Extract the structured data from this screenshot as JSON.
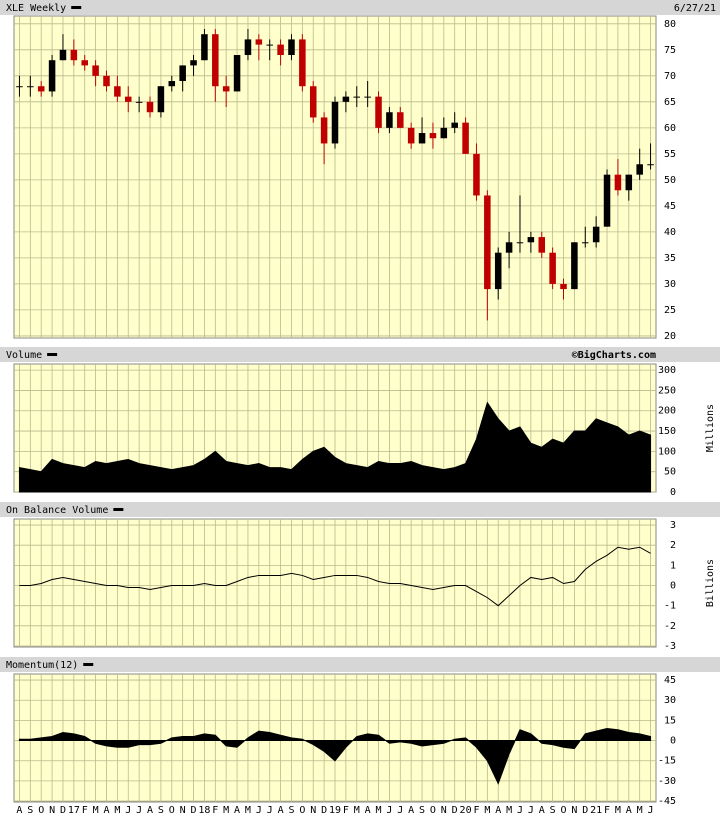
{
  "chart_data": [
    {
      "type": "candlestick",
      "title": "XLE Weekly",
      "date": "6/27/21",
      "categories": [
        "A",
        "S",
        "O",
        "N",
        "D",
        "17",
        "F",
        "M",
        "A",
        "M",
        "J",
        "J",
        "A",
        "S",
        "O",
        "N",
        "D",
        "18",
        "F",
        "M",
        "A",
        "M",
        "J",
        "J",
        "A",
        "S",
        "O",
        "N",
        "D",
        "19",
        "F",
        "M",
        "A",
        "M",
        "J",
        "J",
        "A",
        "S",
        "O",
        "N",
        "D",
        "20",
        "F",
        "M",
        "A",
        "M",
        "J",
        "J",
        "A",
        "S",
        "O",
        "N",
        "D",
        "21",
        "F",
        "M",
        "A",
        "M",
        "J"
      ],
      "open": [
        68,
        68,
        68,
        67,
        73,
        75,
        73,
        72,
        70,
        68,
        66,
        65,
        65,
        63,
        68,
        69,
        72,
        73,
        78,
        68,
        67,
        74,
        77,
        76,
        76,
        74,
        77,
        68,
        62,
        57,
        65,
        66,
        66,
        66,
        60,
        63,
        60,
        57,
        59,
        58,
        60,
        61,
        55,
        47,
        29,
        36,
        38,
        38,
        39,
        36,
        30,
        29,
        38,
        38,
        41,
        51,
        48,
        51,
        53
      ],
      "high": [
        70,
        70,
        69,
        74,
        78,
        77,
        74,
        73,
        71,
        70,
        68,
        66,
        66,
        68,
        70,
        72,
        74,
        79,
        79,
        70,
        74,
        79,
        78,
        77,
        77,
        78,
        78,
        69,
        63,
        66,
        67,
        68,
        69,
        67,
        64,
        64,
        61,
        62,
        61,
        62,
        63,
        62,
        57,
        48,
        37,
        40,
        47,
        40,
        40,
        37,
        31,
        38,
        41,
        43,
        52,
        54,
        51,
        56,
        57
      ],
      "low": [
        66,
        66,
        66,
        66,
        73,
        72,
        71,
        68,
        67,
        65,
        63,
        63,
        62,
        62,
        67,
        67,
        70,
        73,
        65,
        64,
        67,
        73,
        73,
        73,
        72,
        73,
        67,
        61,
        53,
        56,
        63,
        64,
        64,
        59,
        59,
        60,
        56,
        57,
        56,
        58,
        59,
        55,
        46,
        23,
        27,
        33,
        36,
        36,
        35,
        29,
        27,
        29,
        37,
        37,
        41,
        47,
        46,
        50,
        52
      ],
      "close": [
        68,
        68,
        67,
        73,
        75,
        73,
        72,
        70,
        68,
        66,
        65,
        65,
        63,
        68,
        69,
        72,
        73,
        78,
        68,
        67,
        74,
        77,
        76,
        76,
        74,
        77,
        68,
        62,
        57,
        65,
        66,
        66,
        66,
        60,
        63,
        60,
        57,
        59,
        58,
        60,
        61,
        55,
        47,
        29,
        36,
        38,
        38,
        39,
        36,
        30,
        29,
        38,
        38,
        41,
        51,
        48,
        51,
        53,
        53
      ],
      "up_color": "#000000",
      "down_color": "#c00000",
      "ylim": [
        19.6,
        81.5
      ],
      "yticks": [
        20,
        25,
        30,
        35,
        40,
        45,
        50,
        55,
        60,
        65,
        70,
        75,
        80
      ],
      "grid": true
    },
    {
      "type": "area",
      "title": "Volume",
      "source": "©BigCharts.com",
      "axis_label": "Millions",
      "values": [
        60,
        55,
        50,
        80,
        70,
        65,
        60,
        75,
        70,
        75,
        80,
        70,
        65,
        60,
        55,
        60,
        65,
        80,
        100,
        75,
        70,
        65,
        70,
        60,
        60,
        55,
        80,
        100,
        110,
        85,
        70,
        65,
        60,
        75,
        70,
        70,
        75,
        65,
        60,
        55,
        60,
        70,
        130,
        220,
        180,
        150,
        160,
        120,
        110,
        130,
        120,
        150,
        150,
        180,
        170,
        160,
        140,
        150,
        140
      ],
      "color": "#000000",
      "ylim": [
        0,
        315
      ],
      "yticks": [
        0,
        50,
        100,
        150,
        200,
        250,
        300
      ],
      "grid": true
    },
    {
      "type": "line",
      "title": "On Balance Volume",
      "axis_label": "Billions",
      "values": [
        0,
        0,
        0.1,
        0.3,
        0.4,
        0.3,
        0.2,
        0.1,
        0,
        0,
        -0.1,
        -0.1,
        -0.2,
        -0.1,
        0,
        0,
        0,
        0.1,
        0,
        0,
        0.2,
        0.4,
        0.5,
        0.5,
        0.5,
        0.6,
        0.5,
        0.3,
        0.4,
        0.5,
        0.5,
        0.5,
        0.4,
        0.2,
        0.1,
        0.1,
        0,
        -0.1,
        -0.2,
        -0.1,
        0,
        0,
        -0.3,
        -0.6,
        -1.0,
        -0.5,
        0,
        0.4,
        0.3,
        0.4,
        0.1,
        0.2,
        0.8,
        1.2,
        1.5,
        1.9,
        1.8,
        1.9,
        1.6
      ],
      "color": "#000000",
      "ylim": [
        -3.05,
        3.3
      ],
      "yticks": [
        -3,
        -2,
        -1,
        0,
        1,
        2,
        3
      ],
      "grid": true
    },
    {
      "type": "area",
      "title": "Momentum(12)",
      "values": [
        1,
        1,
        2,
        3,
        6,
        5,
        3,
        -2,
        -4,
        -5,
        -5,
        -3,
        -3,
        -2,
        2,
        3,
        3,
        5,
        4,
        -4,
        -5,
        2,
        7,
        6,
        4,
        2,
        1,
        -3,
        -8,
        -15,
        -5,
        3,
        5,
        4,
        -2,
        -1,
        -2,
        -4,
        -3,
        -2,
        1,
        2,
        -5,
        -15,
        -32,
        -10,
        8,
        5,
        -2,
        -3,
        -5,
        -6,
        5,
        7,
        9,
        8,
        6,
        5,
        3
      ],
      "color": "#000000",
      "ylim": [
        -45.7,
        49.5
      ],
      "yticks": [
        -45,
        -30,
        -15,
        0,
        15,
        30,
        45
      ],
      "grid": true
    }
  ]
}
